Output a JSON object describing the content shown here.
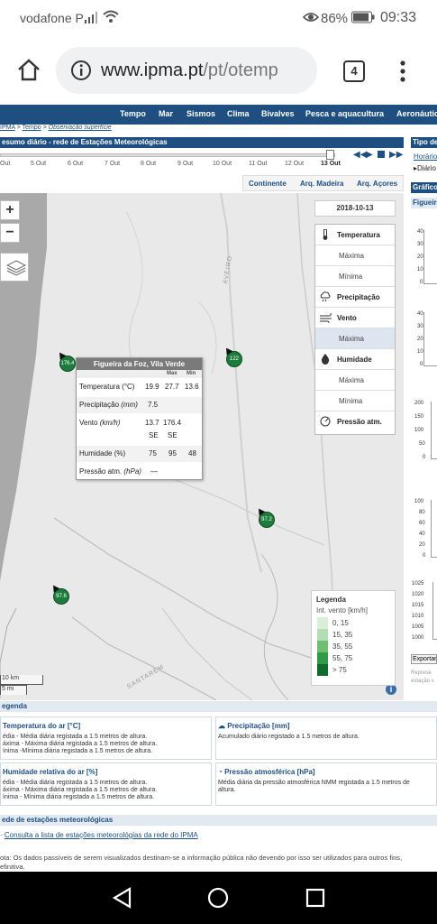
{
  "status_bar": {
    "carrier": "vodafone P",
    "battery": "86%",
    "time": "09:33"
  },
  "browser": {
    "url_domain": "www.ipma.pt",
    "url_path": "/pt/otemp",
    "tab_count": "4"
  },
  "nav": {
    "items": [
      "Tempo",
      "Mar",
      "Sismos",
      "Clima",
      "Bivalves",
      "Pesca e aquacultura",
      "Aeronáutic"
    ]
  },
  "breadcrumb": {
    "items": [
      "IPMA",
      "Tempo",
      "Observação superfície"
    ],
    "sep": ">"
  },
  "section_title": "esumo diário - rede de Estações Meteorológicas",
  "side_title": "Tipo de",
  "side_options": [
    "Horário",
    "Diário"
  ],
  "side_graph_title": "Gráfico",
  "side_graph_station": "Figueir",
  "timeline": {
    "dates": [
      "Out",
      "5 Out",
      "6 Out",
      "7 Out",
      "8 Out",
      "9 Out",
      "10 Out",
      "11 Out",
      "12 Out",
      "13 Out"
    ],
    "selected": "13 Out"
  },
  "region_tabs": [
    "Continente",
    "Arq. Madeira",
    "Arq. Açores"
  ],
  "map": {
    "zoom_in": "+",
    "zoom_out": "−",
    "date": "2018-10-13",
    "places": [
      "AVEIRO",
      "SANTARÉM"
    ],
    "scale_km": "10 km",
    "scale_mi": "5 mi",
    "markers": [
      "176.4",
      "122",
      "97.2",
      "97.6"
    ]
  },
  "popup": {
    "title": "Figueira da Foz, Vila Verde",
    "col_max": "Max",
    "col_min": "Min",
    "rows": [
      {
        "label": "Temperatura",
        "unit": "(°C)",
        "v1": "19.9",
        "v2": "27.7",
        "v3": "13.6"
      },
      {
        "label": "Precipitação",
        "unit": "(mm)",
        "v1": "7.5",
        "v2": "",
        "v3": ""
      },
      {
        "label": "Vento",
        "unit": "(km/h)",
        "v1": "13.7",
        "v2": "176.4",
        "v3": ""
      },
      {
        "label": "",
        "unit": "",
        "v1": "SE",
        "v2": "SE",
        "v3": ""
      },
      {
        "label": "Humidade (%)",
        "unit": "",
        "v1": "75",
        "v2": "95",
        "v3": "48"
      },
      {
        "label": "Pressão atm.",
        "unit": "(hPa)",
        "v1": "—",
        "v2": "",
        "v3": ""
      }
    ]
  },
  "variables": {
    "temperatura": "Temperatura",
    "temp_max": "Máxima",
    "temp_min": "Mínima",
    "precipitacao": "Precipitação",
    "vento": "Vento",
    "vento_max": "Máxima",
    "humidade": "Humidade",
    "hum_max": "Máxima",
    "hum_min": "Mínima",
    "pressao": "Pressão atm."
  },
  "legend": {
    "title": "Legenda",
    "subtitle": "Int. vento [km/h]",
    "entries": [
      "0, 15",
      "15, 35",
      "35, 55",
      "55, 75",
      "> 75"
    ],
    "colors": [
      "#d9efd8",
      "#b3deb3",
      "#6fbf73",
      "#2f9a47",
      "#0e6b2c"
    ]
  },
  "right_axes": {
    "t1": [
      "40",
      "30",
      "20",
      "10",
      "0"
    ],
    "t2": [
      "40",
      "30",
      "20",
      "10",
      "0"
    ],
    "t3": [
      "200",
      "150",
      "100",
      "50",
      "0"
    ],
    "t4": [
      "100",
      "80",
      "60",
      "40",
      "20",
      "0"
    ],
    "t5": [
      "1025",
      "1020",
      "1015",
      "1010",
      "1005",
      "1000"
    ],
    "export": "Exportar",
    "note": "Represe estação s"
  },
  "legend_section": {
    "header": "egenda",
    "temp_title": "Temperatura do ar [°C]",
    "temp_l1": "édia - Média diária registada a 1.5 metros de altura.",
    "temp_l2": "áxima - Máxima diária registada a 1.5 metros de altura.",
    "temp_l3": "ínima -Mínima diária registada a 1.5 metros de altura.",
    "prec_title": "Precipitação [mm]",
    "prec_l1": "Acumulado diário registado a 1.5 metros de altura.",
    "hum_title": "Humidade relativa do ar [%]",
    "hum_l1": "édia - Média diária registada a 1.5 metros de altura.",
    "hum_l2": "áxima - Máxima diária registada a 1.5 metros de altura.",
    "hum_l3": "ínima - Mínima diária registada a 1.5 metros de altura.",
    "pres_title": "Pressão atmosférica [hPa]",
    "pres_l1": "Média diária da pressão atmosférica NMM registada a 1.5 metros de",
    "pres_l2": "altura."
  },
  "network_section": {
    "header": "ede de estações meteorológicas",
    "link": "Consulta a lista de estações meteorológias da rede do IPMA"
  },
  "footer_note": {
    "l1": "ota: Os dados passíveis de serem visualizados destinam-se a informação pública não devendo por isso ser utilizados para outros fins,",
    "l2": "efinitiva."
  }
}
